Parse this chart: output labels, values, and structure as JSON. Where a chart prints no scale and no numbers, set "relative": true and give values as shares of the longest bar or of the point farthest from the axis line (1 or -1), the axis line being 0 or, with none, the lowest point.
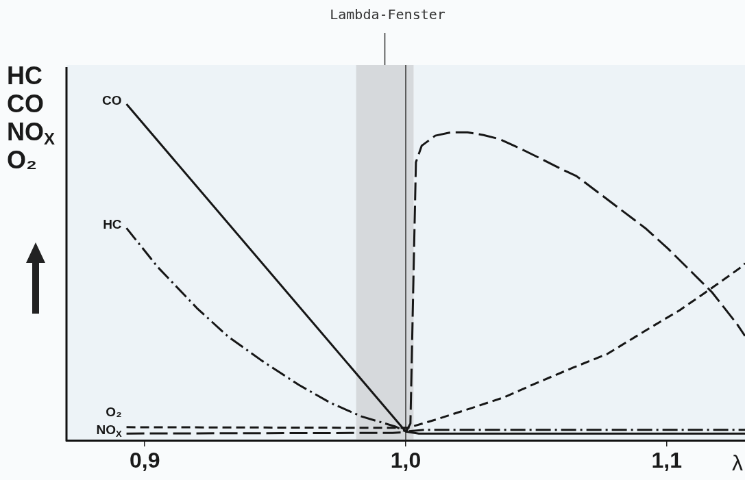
{
  "chart_data": {
    "type": "line",
    "ylabel": "HC\nCO\nNO$_{X}$\nO₂",
    "xlabel": "λ",
    "relative": true,
    "legend": false,
    "marker": "none",
    "xlim": [
      0.87,
      1.13
    ],
    "xticks": [
      {
        "value": 0.9,
        "label": "0,9"
      },
      {
        "value": 1.0,
        "label": "1,0"
      },
      {
        "value": 1.1,
        "label": "1,1"
      }
    ],
    "bands": [
      {
        "axis": "x",
        "from": 0.981,
        "to": 1.003,
        "label": "Lambda-Fenster",
        "color": "#d6d9dc"
      }
    ],
    "ref_lines": [
      {
        "axis": "x",
        "value": 1.0,
        "color": "#333333"
      }
    ],
    "series": [
      {
        "name": "CO",
        "color": "#161616",
        "line_style": "solid",
        "x": [
          0.893,
          1.0,
          1.005,
          1.13
        ],
        "values": [
          1.0,
          0.026,
          0.02,
          0.02
        ]
      },
      {
        "name": "HC",
        "color": "#161616",
        "line_style": "dashdot",
        "x": [
          0.893,
          0.905,
          0.92,
          0.932,
          0.945,
          0.959,
          0.971,
          0.983,
          0.996,
          1.0,
          1.007,
          1.13
        ],
        "values": [
          0.631,
          0.515,
          0.393,
          0.308,
          0.236,
          0.165,
          0.112,
          0.071,
          0.041,
          0.026,
          0.031,
          0.031
        ]
      },
      {
        "name": "O₂",
        "color": "#161616",
        "line_style": "dashed",
        "x": [
          0.893,
          0.995,
          1.0008,
          1.0113,
          1.0245,
          1.0377,
          1.0509,
          1.0641,
          1.0773,
          1.0918,
          1.105,
          1.1164,
          1.1296,
          1.13
        ],
        "values": [
          0.039,
          0.037,
          0.037,
          0.061,
          0.094,
          0.128,
          0.173,
          0.216,
          0.257,
          0.326,
          0.387,
          0.448,
          0.521,
          0.527
        ]
      },
      {
        "name": "NO$_{X}$",
        "color": "#161616",
        "line_style": "longdash",
        "x": [
          0.893,
          0.995,
          1.0,
          1.0018,
          1.003,
          1.0039,
          1.0061,
          1.0113,
          1.0174,
          1.0237,
          1.0298,
          1.0359,
          1.0438,
          1.0509,
          1.0596,
          1.0654,
          1.0741,
          1.0831,
          1.0918,
          1.1005,
          1.1095,
          1.1174,
          1.1269,
          1.13
        ],
        "values": [
          0.02,
          0.022,
          0.024,
          0.05,
          0.5,
          0.827,
          0.876,
          0.906,
          0.916,
          0.916,
          0.908,
          0.896,
          0.868,
          0.841,
          0.807,
          0.786,
          0.735,
          0.682,
          0.631,
          0.57,
          0.501,
          0.44,
          0.346,
          0.31
        ]
      }
    ]
  }
}
